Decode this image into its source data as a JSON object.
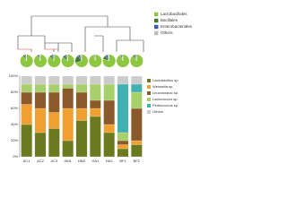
{
  "chart_data": [
    {
      "type": "pie",
      "categories": [
        "AC1",
        "AC2",
        "AC3",
        "HM1",
        "HM2",
        "HA1",
        "HA2",
        "BF1",
        "BF2"
      ],
      "series": [
        {
          "name": "Lactobacillales",
          "color": "#8dc63f",
          "values": [
            90,
            92,
            88,
            85,
            70,
            95,
            80,
            93,
            90
          ]
        },
        {
          "name": "Bacillales",
          "color": "#3a7d2c",
          "values": [
            5,
            4,
            6,
            8,
            20,
            3,
            10,
            4,
            5
          ]
        },
        {
          "name": "Enterobacteriales",
          "color": "#3b5ba8",
          "values": [
            3,
            2,
            4,
            4,
            6,
            1,
            6,
            2,
            3
          ]
        },
        {
          "name": "Others",
          "color": "#bbbbbb",
          "values": [
            2,
            2,
            2,
            3,
            4,
            1,
            4,
            1,
            2
          ]
        }
      ]
    },
    {
      "type": "bar",
      "stacked": true,
      "categories": [
        "AC1",
        "AC2",
        "AC3",
        "HM1",
        "HM2",
        "HA1",
        "HA2",
        "BF1",
        "BF2"
      ],
      "ylim": [
        0,
        100
      ],
      "yticks": [
        {
          "value": 0,
          "label": "0%"
        },
        {
          "value": 20,
          "label": "20%"
        },
        {
          "value": 40,
          "label": "40%"
        },
        {
          "value": 60,
          "label": "60%"
        },
        {
          "value": 80,
          "label": "80%"
        },
        {
          "value": 100,
          "label": "100%"
        }
      ],
      "series": [
        {
          "name": "Lactobacillus sp.",
          "color": "#6b7a1e",
          "values": [
            40,
            30,
            35,
            20,
            45,
            50,
            30,
            10,
            15
          ]
        },
        {
          "name": "Weissella sp.",
          "color": "#f0a030",
          "values": [
            25,
            30,
            20,
            40,
            15,
            10,
            10,
            5,
            5
          ]
        },
        {
          "name": "Leuconostoc sp.",
          "color": "#8b5a2b",
          "values": [
            15,
            20,
            25,
            25,
            20,
            10,
            30,
            5,
            40
          ]
        },
        {
          "name": "Lactococcus sp.",
          "color": "#a8d06a",
          "values": [
            10,
            10,
            10,
            5,
            10,
            20,
            20,
            10,
            20
          ]
        },
        {
          "name": "Pediococcus sp.",
          "color": "#40b0b0",
          "values": [
            0,
            0,
            0,
            0,
            0,
            0,
            0,
            60,
            10
          ]
        },
        {
          "name": "Others",
          "color": "#cccccc",
          "values": [
            10,
            10,
            10,
            10,
            10,
            10,
            10,
            10,
            10
          ]
        }
      ]
    }
  ]
}
